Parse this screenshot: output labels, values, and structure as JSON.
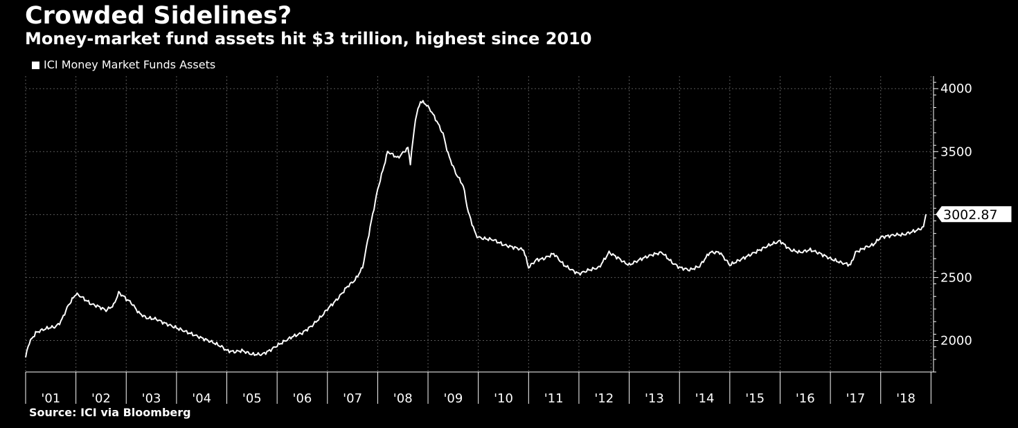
{
  "chart_data": {
    "type": "line",
    "title": "Crowded Sidelines?",
    "subtitle": "Money-market fund assets hit $3 trillion, highest since 2010",
    "legend": "ICI Money Market Funds Assets",
    "source": "Source: ICI via Bloomberg",
    "xlabel": "",
    "ylabel": "",
    "xlim": [
      2001.0,
      2019.05
    ],
    "ylim": [
      1750,
      4100
    ],
    "ytick_values": [
      2000,
      2500,
      3000,
      3500,
      4000
    ],
    "ytick_labels": [
      "2000",
      "2500",
      "3000",
      "3500",
      "4000"
    ],
    "xtick_labels": [
      "'01",
      "'02",
      "'03",
      "'04",
      "'05",
      "'06",
      "'07",
      "'08",
      "'09",
      "'10",
      "'11",
      "'12",
      "'13",
      "'14",
      "'15",
      "'16",
      "'17",
      "'18"
    ],
    "grid": true,
    "last_value_label": "3002.87",
    "series": [
      {
        "name": "ICI Money Market Funds Assets",
        "x": [
          2001.0,
          2001.05,
          2001.1,
          2001.2,
          2001.3,
          2001.45,
          2001.6,
          2001.7,
          2001.85,
          2002.0,
          2002.1,
          2002.2,
          2002.3,
          2002.45,
          2002.6,
          2002.75,
          2002.85,
          2002.95,
          2003.0,
          2003.1,
          2003.25,
          2003.4,
          2003.6,
          2003.75,
          2004.0,
          2004.25,
          2004.5,
          2004.75,
          2004.9,
          2005.0,
          2005.15,
          2005.3,
          2005.5,
          2005.7,
          2005.85,
          2006.0,
          2006.3,
          2006.5,
          2006.7,
          2006.9,
          2007.0,
          2007.2,
          2007.4,
          2007.55,
          2007.7,
          2007.85,
          2008.0,
          2008.2,
          2008.4,
          2008.6,
          2008.65,
          2008.75,
          2008.85,
          2008.95,
          2009.05,
          2009.15,
          2009.3,
          2009.4,
          2009.55,
          2009.7,
          2009.8,
          2009.95,
          2010.0,
          2010.1,
          2010.3,
          2010.5,
          2010.7,
          2010.9,
          2011.0,
          2011.15,
          2011.3,
          2011.45,
          2011.5,
          2011.7,
          2011.9,
          2012.0,
          2012.2,
          2012.4,
          2012.6,
          2012.8,
          2012.9,
          2013.0,
          2013.25,
          2013.45,
          2013.65,
          2013.85,
          2014.0,
          2014.2,
          2014.4,
          2014.6,
          2014.8,
          2015.0,
          2015.2,
          2015.4,
          2015.6,
          2015.8,
          2016.0,
          2016.2,
          2016.4,
          2016.6,
          2016.8,
          2017.0,
          2017.2,
          2017.4,
          2017.5,
          2017.7,
          2017.85,
          2018.0,
          2018.15,
          2018.3,
          2018.45,
          2018.6,
          2018.75,
          2018.85,
          2018.9
        ],
        "values": [
          1862,
          1960,
          2000,
          2060,
          2080,
          2100,
          2110,
          2150,
          2280,
          2370,
          2350,
          2320,
          2290,
          2270,
          2240,
          2280,
          2380,
          2350,
          2330,
          2300,
          2220,
          2180,
          2170,
          2140,
          2100,
          2060,
          2020,
          1980,
          1950,
          1920,
          1910,
          1920,
          1890,
          1890,
          1920,
          1960,
          2030,
          2060,
          2120,
          2200,
          2250,
          2330,
          2430,
          2480,
          2580,
          2900,
          3200,
          3500,
          3450,
          3530,
          3410,
          3760,
          3900,
          3880,
          3830,
          3760,
          3640,
          3480,
          3330,
          3230,
          3020,
          2840,
          2820,
          2810,
          2800,
          2760,
          2740,
          2720,
          2580,
          2640,
          2650,
          2680,
          2690,
          2600,
          2550,
          2530,
          2560,
          2580,
          2700,
          2650,
          2620,
          2600,
          2650,
          2680,
          2700,
          2620,
          2580,
          2560,
          2590,
          2700,
          2700,
          2600,
          2640,
          2680,
          2720,
          2760,
          2790,
          2720,
          2700,
          2720,
          2690,
          2650,
          2620,
          2600,
          2700,
          2740,
          2760,
          2820,
          2830,
          2840,
          2840,
          2860,
          2880,
          2900,
          3003
        ]
      }
    ]
  }
}
